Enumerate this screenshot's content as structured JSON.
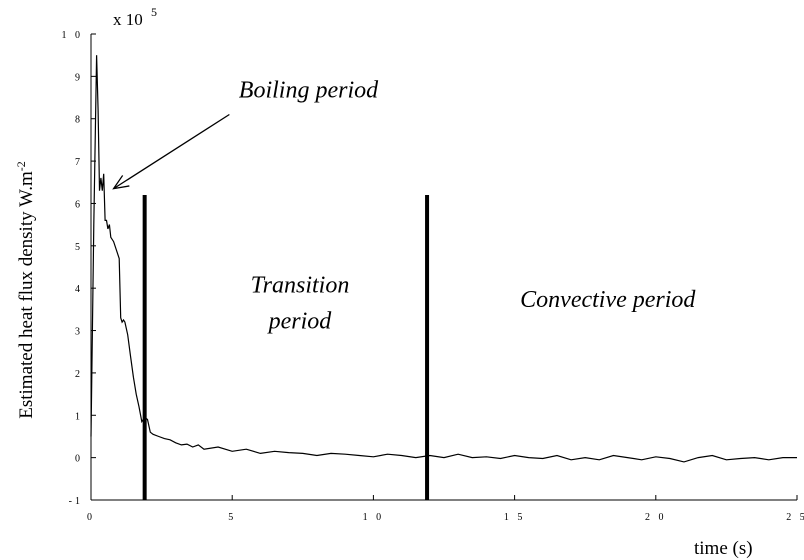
{
  "chart_data": {
    "type": "line",
    "title": "",
    "xlabel": "time (s)",
    "ylabel": "Estimated heat flux density W.m",
    "ylabel_superscript": "-2",
    "y_scale_label": "x 10",
    "y_scale_exponent": "5",
    "xlim": [
      0,
      25
    ],
    "ylim": [
      -1,
      10
    ],
    "x_ticks": [
      0,
      5,
      10,
      15,
      20,
      25
    ],
    "x_tick_labels": [
      "0",
      "5",
      "1 0",
      "1 5",
      "2 0",
      "2 5"
    ],
    "y_ticks": [
      -1,
      0,
      1,
      2,
      3,
      4,
      5,
      6,
      7,
      8,
      9,
      10
    ],
    "y_tick_labels": [
      "-1",
      "0",
      "1",
      "2",
      "3",
      "4",
      "5",
      "6",
      "7",
      "8",
      "9",
      "1 0"
    ],
    "grid": false,
    "legend": "none",
    "line_color": "#000000",
    "series": [
      {
        "x": [
          0,
          0.1,
          0.2,
          0.25,
          0.3,
          0.35,
          0.4,
          0.45,
          0.5,
          0.55,
          0.6,
          0.65,
          0.7,
          0.8,
          0.9,
          1.0,
          1.05,
          1.1,
          1.15,
          1.2,
          1.3,
          1.4,
          1.5,
          1.6,
          1.7,
          1.8,
          1.9,
          2.0,
          2.1,
          2.2,
          2.4,
          2.6,
          2.8,
          3.0,
          3.2,
          3.4,
          3.6,
          3.8,
          4.0,
          4.5,
          5.0,
          5.5,
          6.0,
          6.5,
          7.0,
          7.5,
          8.0,
          8.5,
          9.0,
          9.5,
          10.0,
          10.5,
          11.0,
          11.5,
          12.0,
          12.5,
          13.0,
          13.5,
          14.0,
          14.5,
          15.0,
          15.5,
          16.0,
          16.5,
          17.0,
          17.5,
          18.0,
          18.5,
          19.0,
          19.5,
          20.0,
          20.5,
          21.0,
          21.5,
          22.0,
          22.5,
          23.0,
          23.5,
          24.0,
          24.5,
          25.0
        ],
        "values": [
          0.5,
          5.5,
          9.5,
          8.2,
          6.3,
          6.6,
          6.3,
          6.7,
          5.6,
          5.6,
          5.4,
          5.5,
          5.2,
          5.1,
          4.9,
          4.7,
          3.3,
          3.2,
          3.25,
          3.2,
          2.9,
          2.4,
          1.9,
          1.5,
          1.2,
          0.85,
          0.95,
          0.9,
          0.6,
          0.55,
          0.5,
          0.45,
          0.42,
          0.35,
          0.3,
          0.32,
          0.25,
          0.3,
          0.2,
          0.25,
          0.15,
          0.2,
          0.1,
          0.15,
          0.12,
          0.1,
          0.05,
          0.1,
          0.08,
          0.05,
          0.02,
          0.08,
          0.05,
          0.0,
          0.05,
          0.0,
          0.08,
          0.0,
          0.02,
          -0.02,
          0.05,
          0.0,
          -0.02,
          0.05,
          -0.05,
          0.0,
          -0.05,
          0.05,
          0.0,
          -0.05,
          0.02,
          -0.02,
          -0.1,
          0.0,
          0.05,
          -0.05,
          -0.02,
          0.0,
          -0.05,
          0.0,
          0.0
        ]
      }
    ],
    "vertical_markers": [
      {
        "x": 1.9,
        "y_top": 6.2
      },
      {
        "x": 11.9,
        "y_top": 6.2
      }
    ],
    "annotations": [
      {
        "text": "Boiling period",
        "x": 7.7,
        "y": 8.5
      },
      {
        "text": "Transition",
        "x": 7.4,
        "y": 3.9
      },
      {
        "text": "period",
        "x": 7.4,
        "y": 3.05
      },
      {
        "text": "Convective period",
        "x": 18.3,
        "y": 3.55
      }
    ],
    "arrow": {
      "from": [
        4.9,
        8.1
      ],
      "to": [
        0.8,
        6.35
      ]
    }
  }
}
